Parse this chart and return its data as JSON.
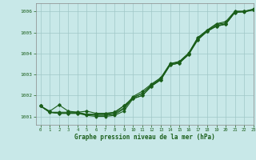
{
  "xlabel": "Graphe pression niveau de la mer (hPa)",
  "ylim": [
    1000.6,
    1006.4
  ],
  "xlim": [
    -0.5,
    23
  ],
  "yticks": [
    1001,
    1002,
    1003,
    1004,
    1005,
    1006
  ],
  "xticks": [
    0,
    1,
    2,
    3,
    4,
    5,
    6,
    7,
    8,
    9,
    10,
    11,
    12,
    13,
    14,
    15,
    16,
    17,
    18,
    19,
    20,
    21,
    22,
    23
  ],
  "background_color": "#c8e8e8",
  "grid_color": "#a0c8c8",
  "line_color": "#1a5e1a",
  "series": [
    [
      1001.5,
      1001.2,
      1001.15,
      1001.15,
      1001.15,
      1001.1,
      1001.05,
      1001.05,
      1001.1,
      1001.35,
      1001.9,
      1002.1,
      1002.5,
      1002.8,
      1003.5,
      1003.6,
      1004.0,
      1004.75,
      1005.1,
      1005.4,
      1005.45,
      1006.0,
      1006.0,
      1006.1
    ],
    [
      1001.5,
      1001.2,
      1001.15,
      1001.15,
      1001.15,
      1001.05,
      1001.0,
      1001.0,
      1001.05,
      1001.25,
      1001.85,
      1002.0,
      1002.45,
      1002.75,
      1003.45,
      1003.55,
      1003.95,
      1004.7,
      1005.05,
      1005.35,
      1005.4,
      1005.98,
      1005.98,
      1006.08
    ],
    [
      1001.5,
      1001.2,
      1001.15,
      1001.15,
      1001.15,
      1001.1,
      1001.1,
      1001.1,
      1001.15,
      1001.4,
      1001.95,
      1002.2,
      1002.55,
      1002.85,
      1003.52,
      1003.62,
      1004.02,
      1004.77,
      1005.12,
      1005.42,
      1005.52,
      1006.02,
      1006.02,
      1006.12
    ],
    [
      1001.5,
      1001.2,
      1001.2,
      1001.2,
      1001.2,
      1001.1,
      1001.1,
      1001.1,
      1001.2,
      1001.5,
      1001.9,
      1002.1,
      1002.5,
      1002.8,
      1003.5,
      1003.6,
      1004.0,
      1004.7,
      1005.1,
      1005.3,
      1005.4,
      1006.0,
      1006.0,
      1006.1
    ]
  ],
  "series_low": [
    1001.5,
    1001.25,
    1001.55,
    1001.25,
    1001.2,
    1001.25,
    1001.15,
    1001.15,
    1001.2,
    1001.5,
    1001.85,
    1002.0,
    1002.45,
    1002.75,
    1003.45,
    1003.55,
    1003.95,
    1004.65,
    1005.05,
    1005.3,
    1005.4,
    1005.95,
    1006.0,
    1006.08
  ]
}
